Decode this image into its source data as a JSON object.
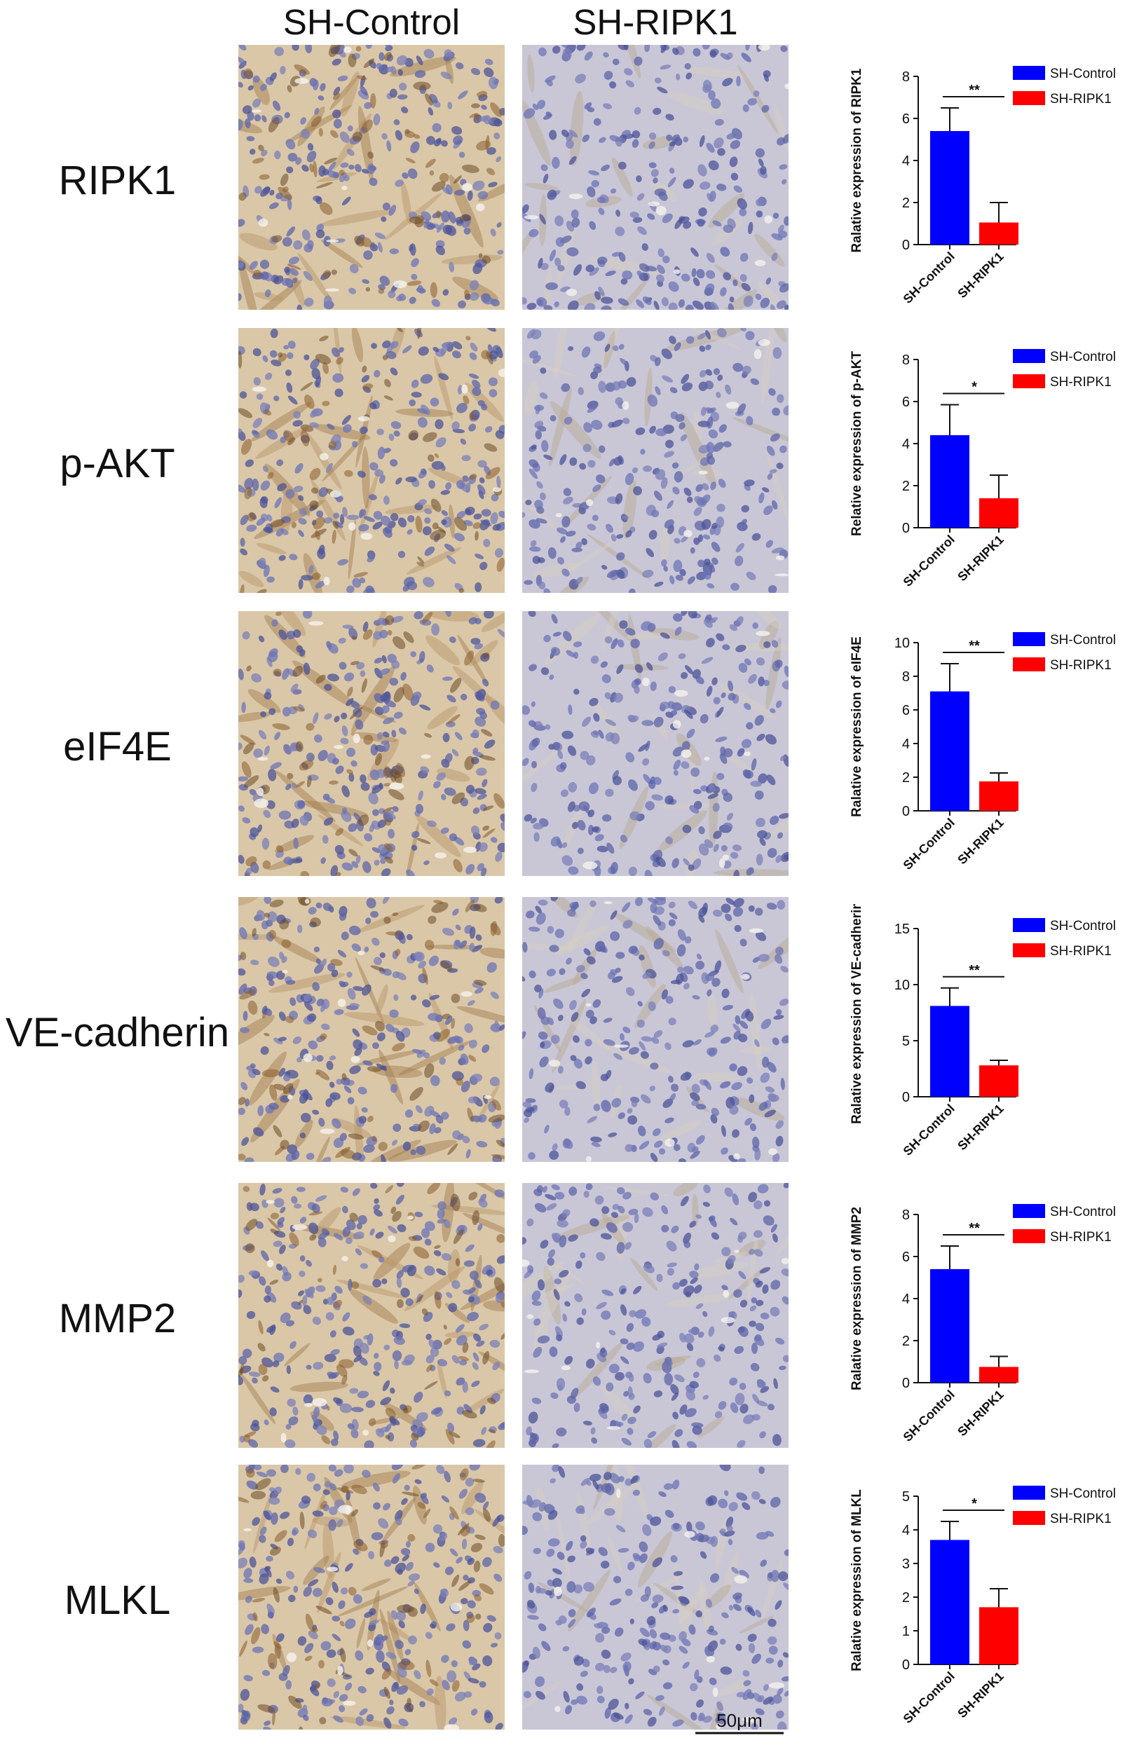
{
  "columns": [
    "SH-Control",
    "SH-RIPK1"
  ],
  "rows": [
    {
      "label": "RIPK1"
    },
    {
      "label": "p-AKT"
    },
    {
      "label": "eIF4E"
    },
    {
      "label": "VE-cadherin"
    },
    {
      "label": "MMP2"
    },
    {
      "label": "MLKL"
    }
  ],
  "scale_bar": "50μm",
  "colors": {
    "sh_control": "#0000ff",
    "sh_ripk1": "#ff0000",
    "stain_control": "#c8a77a",
    "stain_ripk1": "#8e95c4"
  },
  "chart_data": [
    {
      "type": "bar",
      "categories": [
        "SH-Control",
        "SH-RIPK1"
      ],
      "values": [
        5.4,
        1.05
      ],
      "errors": [
        1.1,
        0.95
      ],
      "ylabel": "Ralative expression of RIPK1",
      "ylim": [
        0,
        8
      ],
      "yticks": [
        0,
        2,
        4,
        6,
        8
      ],
      "significance": "**",
      "legend": [
        "SH-Control",
        "SH-RIPK1"
      ],
      "legend_position": "top-right"
    },
    {
      "type": "bar",
      "categories": [
        "SH-Control",
        "SH-RIPK1"
      ],
      "values": [
        4.4,
        1.4
      ],
      "errors": [
        1.45,
        1.1
      ],
      "ylabel": "Relative expression of p-AKT",
      "ylim": [
        0,
        8
      ],
      "yticks": [
        0,
        2,
        4,
        6,
        8
      ],
      "significance": "*",
      "legend": [
        "SH-Control",
        "SH-RIPK1"
      ],
      "legend_position": "top-right"
    },
    {
      "type": "bar",
      "categories": [
        "SH-Control",
        "SH-RIPK1"
      ],
      "values": [
        7.1,
        1.75
      ],
      "errors": [
        1.65,
        0.5
      ],
      "ylabel": "Ralative expression of eIF4E",
      "ylim": [
        0,
        10
      ],
      "yticks": [
        0,
        2,
        4,
        6,
        8,
        10
      ],
      "significance": "**",
      "legend": [
        "SH-Control",
        "SH-RIPK1"
      ],
      "legend_position": "top-right"
    },
    {
      "type": "bar",
      "categories": [
        "SH-Control",
        "SH-RIPK1"
      ],
      "values": [
        8.1,
        2.8
      ],
      "errors": [
        1.6,
        0.45
      ],
      "ylabel": "Ralative expression of VE-cadherin",
      "ylim": [
        0,
        15
      ],
      "yticks": [
        0,
        5,
        10,
        15
      ],
      "significance": "**",
      "legend": [
        "SH-Control",
        "SH-RIPK1"
      ],
      "legend_position": "top-right"
    },
    {
      "type": "bar",
      "categories": [
        "SH-Control",
        "SH-RIPK1"
      ],
      "values": [
        5.4,
        0.75
      ],
      "errors": [
        1.1,
        0.5
      ],
      "ylabel": "Ralative expression of MMP2",
      "ylim": [
        0,
        8
      ],
      "yticks": [
        0,
        2,
        4,
        6,
        8
      ],
      "significance": "**",
      "legend": [
        "SH-Control",
        "SH-RIPK1"
      ],
      "legend_position": "top-right"
    },
    {
      "type": "bar",
      "categories": [
        "SH-Control",
        "SH-RIPK1"
      ],
      "values": [
        3.7,
        1.7
      ],
      "errors": [
        0.55,
        0.55
      ],
      "ylabel": "Ralative expression of MLKL",
      "ylim": [
        0,
        5
      ],
      "yticks": [
        0,
        1,
        2,
        3,
        4,
        5
      ],
      "significance": "*",
      "legend": [
        "SH-Control",
        "SH-RIPK1"
      ],
      "legend_position": "top-right"
    }
  ]
}
